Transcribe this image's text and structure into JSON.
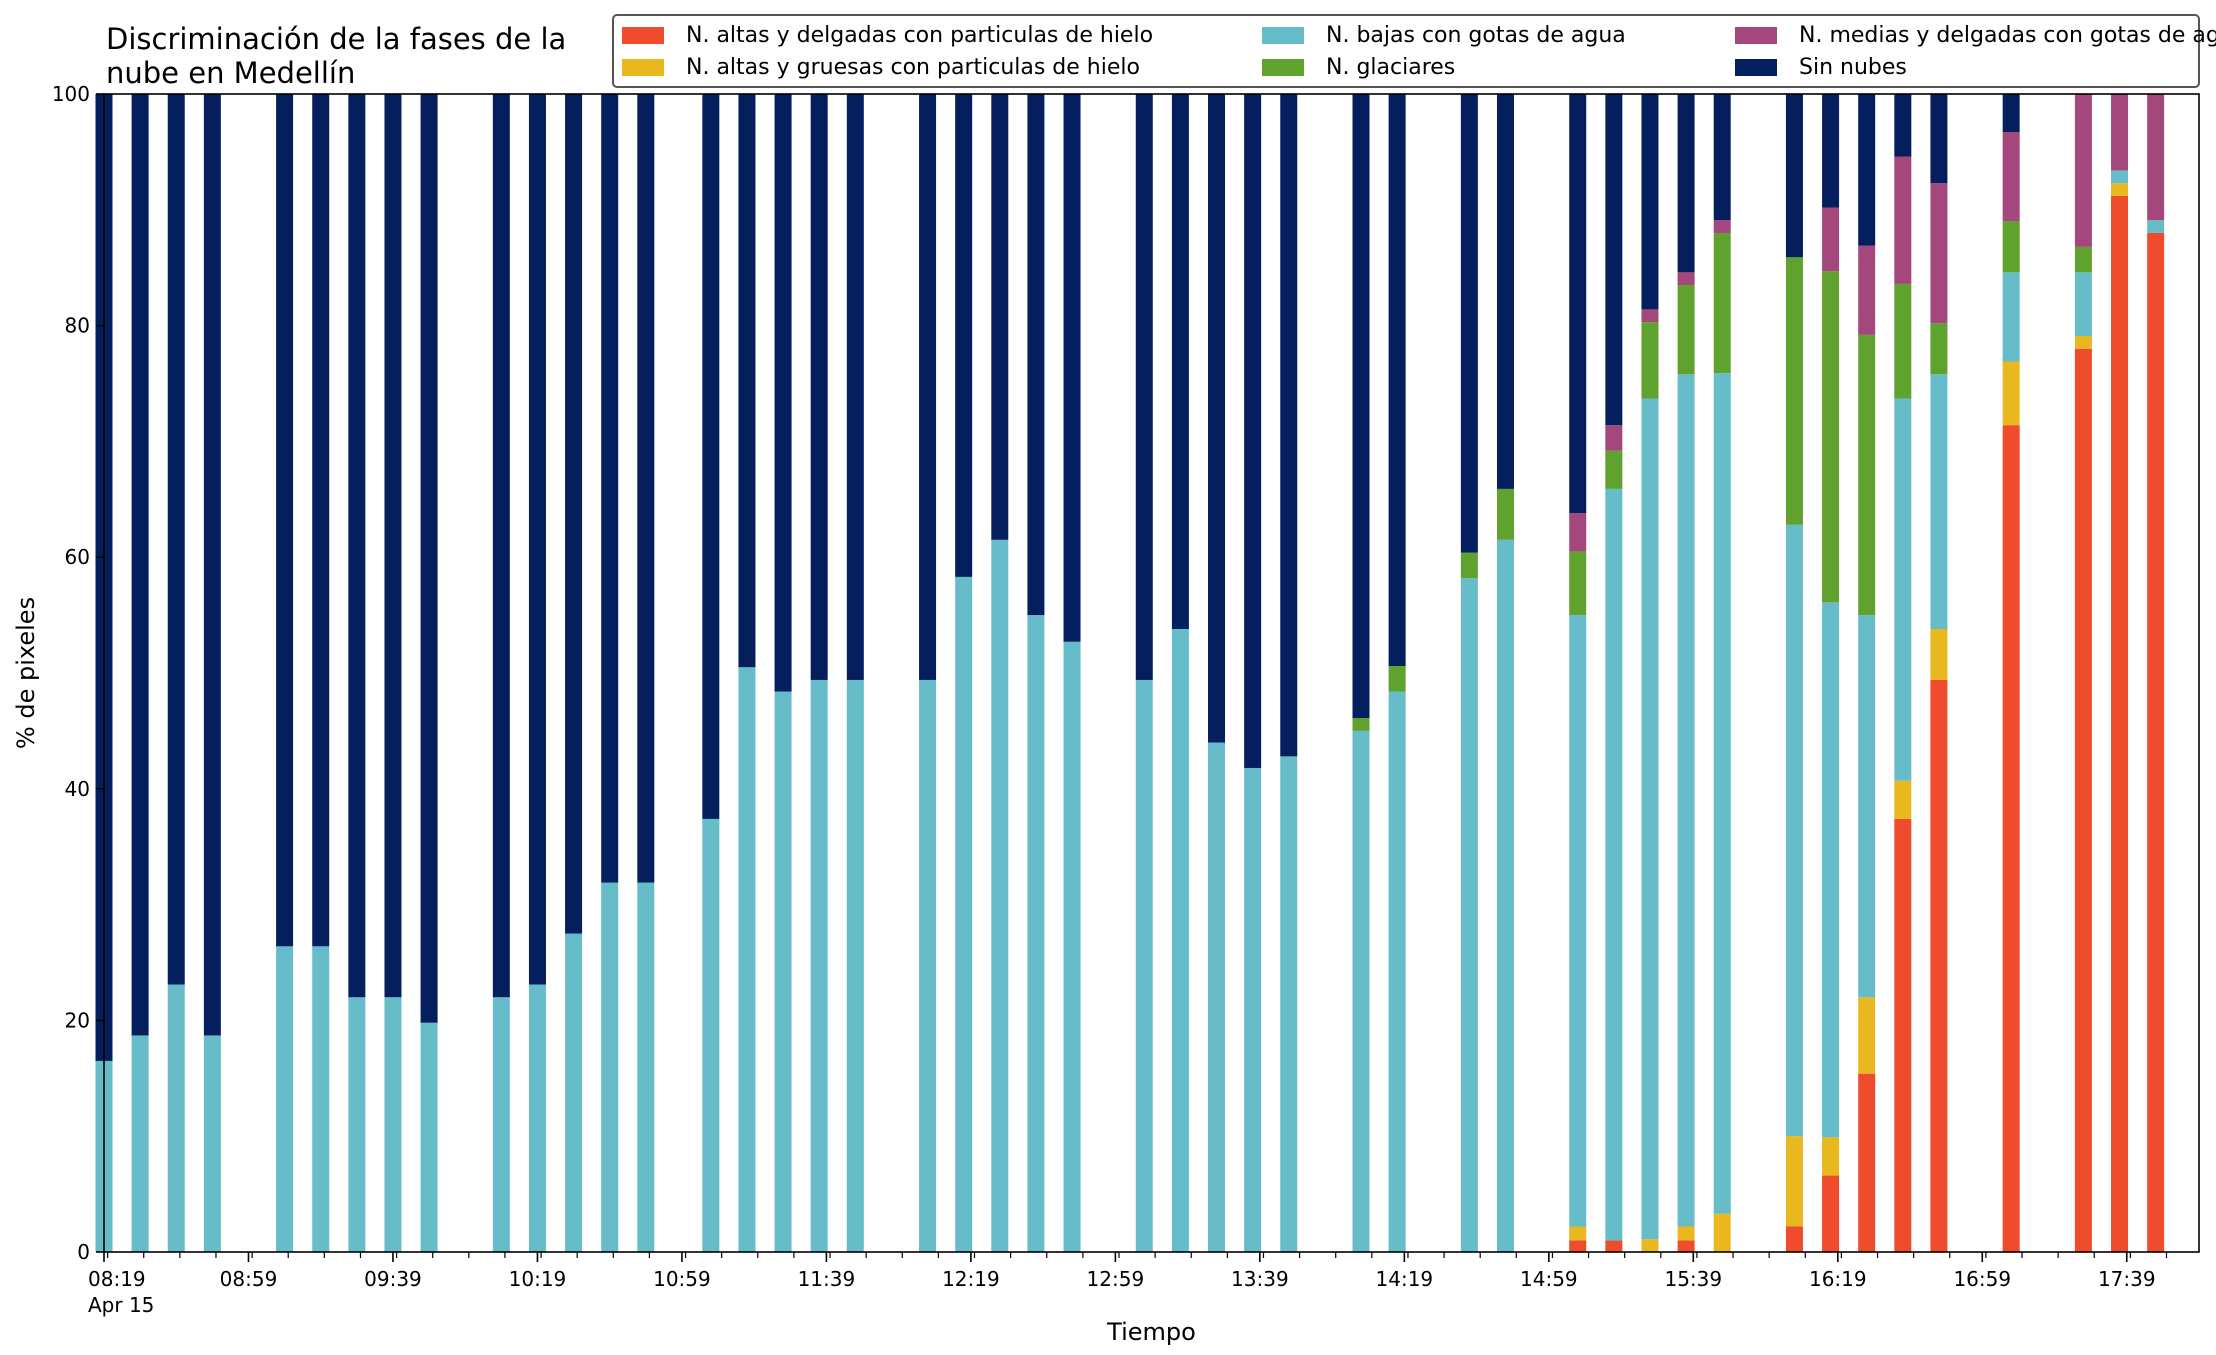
{
  "colors": {
    "high_thin_ice": "#ee4c2c",
    "high_thick_ice": "#e8b81e",
    "low_water": "#66bdc9",
    "middle_thin_water": "#a3477d",
    "glaciated": "#60a22e",
    "no_cloud": "#041e5e"
  },
  "chart_data": {
    "type": "bar",
    "stacked": true,
    "title": "Discriminación de la fases de la nube en Medellín",
    "xlabel": "Tiempo",
    "ylabel": "% de pixeles",
    "ylim": [
      0,
      100
    ],
    "yticks": [
      0,
      20,
      40,
      60,
      80,
      100
    ],
    "xticks": [
      "08:19",
      "08:59",
      "09:39",
      "10:19",
      "10:59",
      "11:39",
      "12:19",
      "12:59",
      "13:39",
      "14:19",
      "14:59",
      "15:39",
      "16:19",
      "16:59",
      "17:39"
    ],
    "xtick_sub": "Apr 15",
    "legend_position": "top-right",
    "grid": false,
    "time_start": "08:19",
    "time_end": "17:59",
    "timestamps": [
      "08:19",
      "08:29",
      "08:39",
      "08:49",
      "09:09",
      "09:19",
      "09:29",
      "09:39",
      "09:49",
      "10:09",
      "10:19",
      "10:29",
      "10:39",
      "10:49",
      "11:07",
      "11:17",
      "11:27",
      "11:37",
      "11:47",
      "12:07",
      "12:17",
      "12:27",
      "12:37",
      "12:47",
      "13:07",
      "13:17",
      "13:27",
      "13:37",
      "13:47",
      "14:07",
      "14:17",
      "14:37",
      "14:47",
      "15:07",
      "15:17",
      "15:27",
      "15:37",
      "15:47",
      "16:07",
      "16:17",
      "16:27",
      "16:37",
      "16:47",
      "17:07",
      "17:27",
      "17:37",
      "17:47"
    ],
    "series": [
      {
        "name": "N. altas y delgadas con particulas de hielo",
        "color_key": "high_thin_ice",
        "values": [
          0,
          0,
          0,
          0,
          0,
          0,
          0,
          0,
          0,
          0,
          0,
          0,
          0,
          0,
          0,
          0,
          0,
          0,
          0,
          0,
          0,
          0,
          0,
          0,
          0,
          0,
          0,
          0,
          0,
          0,
          0,
          0,
          0,
          1,
          1,
          0,
          1,
          0,
          2.2,
          6.6,
          15.4,
          37.4,
          49.4,
          71.4,
          78,
          91.2,
          88
        ]
      },
      {
        "name": "N. altas y gruesas con particulas de hielo",
        "color_key": "high_thick_ice",
        "values": [
          0,
          0,
          0,
          0,
          0,
          0,
          0,
          0,
          0,
          0,
          0,
          0,
          0,
          0,
          0,
          0,
          0,
          0,
          0,
          0,
          0,
          0,
          0,
          0,
          0,
          0,
          0,
          0,
          0,
          0,
          0,
          0,
          0,
          1.2,
          0,
          1.1,
          1.2,
          3.3,
          7.8,
          3.3,
          6.6,
          3.3,
          4.4,
          5.5,
          1.1,
          1.1,
          0
        ]
      },
      {
        "name": "N. bajas con gotas de agua",
        "color_key": "low_water",
        "values": [
          16.5,
          18.7,
          23.1,
          18.7,
          26.4,
          26.4,
          22,
          22,
          19.8,
          22,
          23.1,
          27.5,
          31.9,
          31.9,
          37.4,
          50.5,
          48.4,
          49.4,
          49.4,
          49.4,
          58.3,
          61.5,
          55,
          52.7,
          49.4,
          53.8,
          44,
          41.8,
          42.8,
          45,
          48.4,
          58.2,
          61.5,
          52.8,
          64.9,
          72.6,
          73.6,
          72.6,
          52.8,
          46.2,
          33,
          33,
          22,
          7.7,
          5.5,
          1.1,
          1.1
        ]
      },
      {
        "name": "N. glaciares",
        "color_key": "glaciated",
        "values": [
          0,
          0,
          0,
          0,
          0,
          0,
          0,
          0,
          0,
          0,
          0,
          0,
          0,
          0,
          0,
          0,
          0,
          0,
          0,
          0,
          0,
          0,
          0,
          0,
          0,
          0,
          0,
          0,
          0,
          1.1,
          2.2,
          2.2,
          4.4,
          5.5,
          3.3,
          6.6,
          7.7,
          12.1,
          23.1,
          28.6,
          24.2,
          9.9,
          4.4,
          4.4,
          2.2,
          0,
          0
        ]
      },
      {
        "name": "N. medias y delgadas con gotas de agua",
        "color_key": "middle_thin_water",
        "values": [
          0,
          0,
          0,
          0,
          0,
          0,
          0,
          0,
          0,
          0,
          0,
          0,
          0,
          0,
          0,
          0,
          0,
          0,
          0,
          0,
          0,
          0,
          0,
          0,
          0,
          0,
          0,
          0,
          0,
          0,
          0,
          0,
          0,
          3.3,
          2.2,
          1.1,
          1.1,
          1.1,
          0,
          5.5,
          7.7,
          11,
          12.1,
          7.7,
          13.2,
          6.6,
          11
        ]
      },
      {
        "name": "Sin nubes",
        "color_key": "no_cloud",
        "values": [
          83.5,
          81.3,
          76.9,
          81.3,
          73.6,
          73.6,
          78,
          78,
          80.2,
          78,
          76.9,
          72.5,
          68.1,
          68.1,
          62.6,
          49.5,
          51.6,
          50.6,
          50.6,
          50.6,
          41.7,
          38.5,
          45,
          47.3,
          50.6,
          46.2,
          56,
          58.2,
          57.2,
          53.9,
          49.4,
          39.6,
          34.1,
          36.2,
          28.6,
          18.6,
          15.4,
          10.9,
          14.1,
          9.8,
          13.1,
          5.4,
          7.8,
          3.3,
          0,
          0,
          0
        ]
      }
    ]
  }
}
